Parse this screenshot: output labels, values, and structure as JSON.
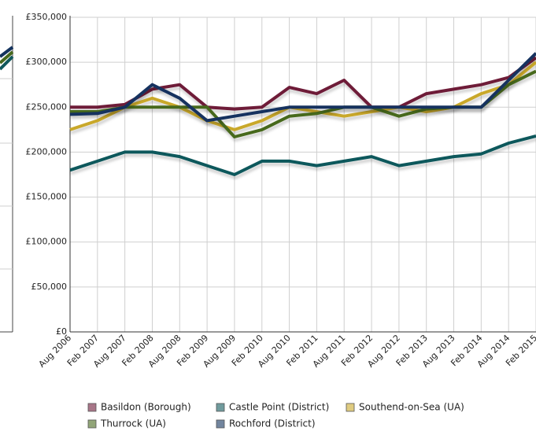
{
  "chart_data": {
    "type": "line",
    "categories": [
      "Aug 2006",
      "Feb 2007",
      "Aug 2007",
      "Feb 2008",
      "Aug 2008",
      "Feb 2009",
      "Aug 2009",
      "Feb 2010",
      "Aug 2010",
      "Feb 2011",
      "Aug 2011",
      "Feb 2012",
      "Aug 2012",
      "Feb 2013",
      "Aug 2013",
      "Feb 2014",
      "Aug 2014",
      "Feb 2015"
    ],
    "series": [
      {
        "name": "Basildon (Borough)",
        "color": "#6e1a38",
        "values": [
          250000,
          250000,
          253000,
          270000,
          275000,
          250000,
          248000,
          250000,
          272000,
          265000,
          280000,
          250000,
          250000,
          265000,
          270000,
          275000,
          283000,
          305000
        ]
      },
      {
        "name": "Castle Point (District)",
        "color": "#11585c",
        "values": [
          180000,
          190000,
          200000,
          200000,
          195000,
          185000,
          175000,
          190000,
          190000,
          185000,
          190000,
          195000,
          185000,
          190000,
          195000,
          198000,
          210000,
          218000
        ]
      },
      {
        "name": "Southend-on-Sea (UA)",
        "color": "#c9a82c",
        "values": [
          225000,
          235000,
          250000,
          260000,
          250000,
          235000,
          225000,
          235000,
          250000,
          245000,
          240000,
          245000,
          250000,
          245000,
          250000,
          265000,
          275000,
          300000
        ]
      },
      {
        "name": "Thurrock (UA)",
        "color": "#47691e",
        "values": [
          245000,
          245000,
          250000,
          250000,
          250000,
          250000,
          217000,
          225000,
          240000,
          243000,
          250000,
          250000,
          240000,
          248000,
          250000,
          250000,
          275000,
          290000
        ]
      },
      {
        "name": "Rochford (District)",
        "color": "#14335e",
        "values": [
          242000,
          243000,
          250000,
          275000,
          260000,
          235000,
          240000,
          245000,
          250000,
          250000,
          250000,
          250000,
          250000,
          250000,
          250000,
          250000,
          280000,
          310000
        ]
      }
    ],
    "ylim": [
      0,
      350000
    ],
    "yticks": [
      {
        "value": 0,
        "label": "£0"
      },
      {
        "value": 50000,
        "label": "£50,000"
      },
      {
        "value": 100000,
        "label": "£100,000"
      },
      {
        "value": 150000,
        "label": "£150,000"
      },
      {
        "value": 200000,
        "label": "£200,000"
      },
      {
        "value": 250000,
        "label": "£250,000"
      },
      {
        "value": 300000,
        "label": "£300,000"
      },
      {
        "value": 350000,
        "label": "£350,000"
      }
    ],
    "grid": true,
    "legend": "bottom"
  }
}
